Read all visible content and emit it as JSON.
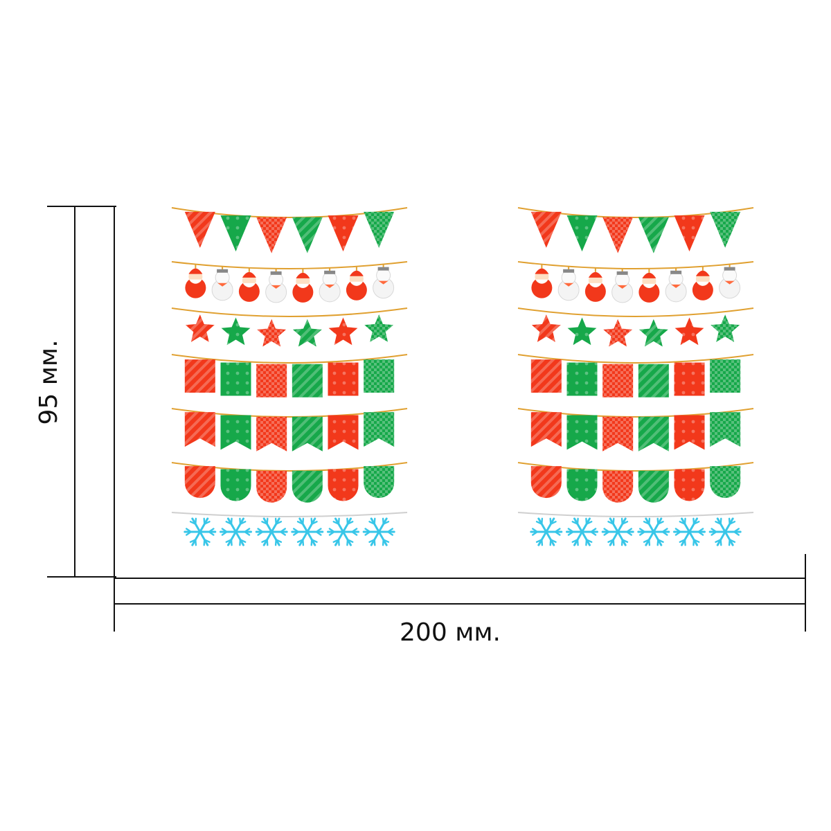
{
  "dimensions": {
    "height_label": "95 мм.",
    "width_label": "200 мм."
  },
  "sheets": [
    {
      "rows": [
        {
          "type": "pennant-triangle",
          "count": 6
        },
        {
          "type": "santa-snowman-ornament",
          "count": 8
        },
        {
          "type": "star",
          "count": 6
        },
        {
          "type": "flag-rectangle",
          "count": 6
        },
        {
          "type": "flag-swallowtail",
          "count": 6
        },
        {
          "type": "flag-rounded",
          "count": 6
        },
        {
          "type": "snowflake",
          "count": 6
        }
      ]
    },
    {
      "rows": [
        {
          "type": "pennant-triangle",
          "count": 6
        },
        {
          "type": "santa-snowman-ornament",
          "count": 8
        },
        {
          "type": "star",
          "count": 6
        },
        {
          "type": "flag-rectangle",
          "count": 6
        },
        {
          "type": "flag-swallowtail",
          "count": 6
        },
        {
          "type": "flag-rounded",
          "count": 6
        },
        {
          "type": "snowflake",
          "count": 6
        }
      ]
    }
  ],
  "colors": {
    "red": "#f2381b",
    "red_light": "#ff6a3d",
    "green": "#16a84a",
    "green_light": "#3ecf62",
    "string": "#e0a030",
    "snow_string": "#cfcfcf",
    "snowflake": "#38c6e8",
    "dimension_line": "#111111"
  }
}
